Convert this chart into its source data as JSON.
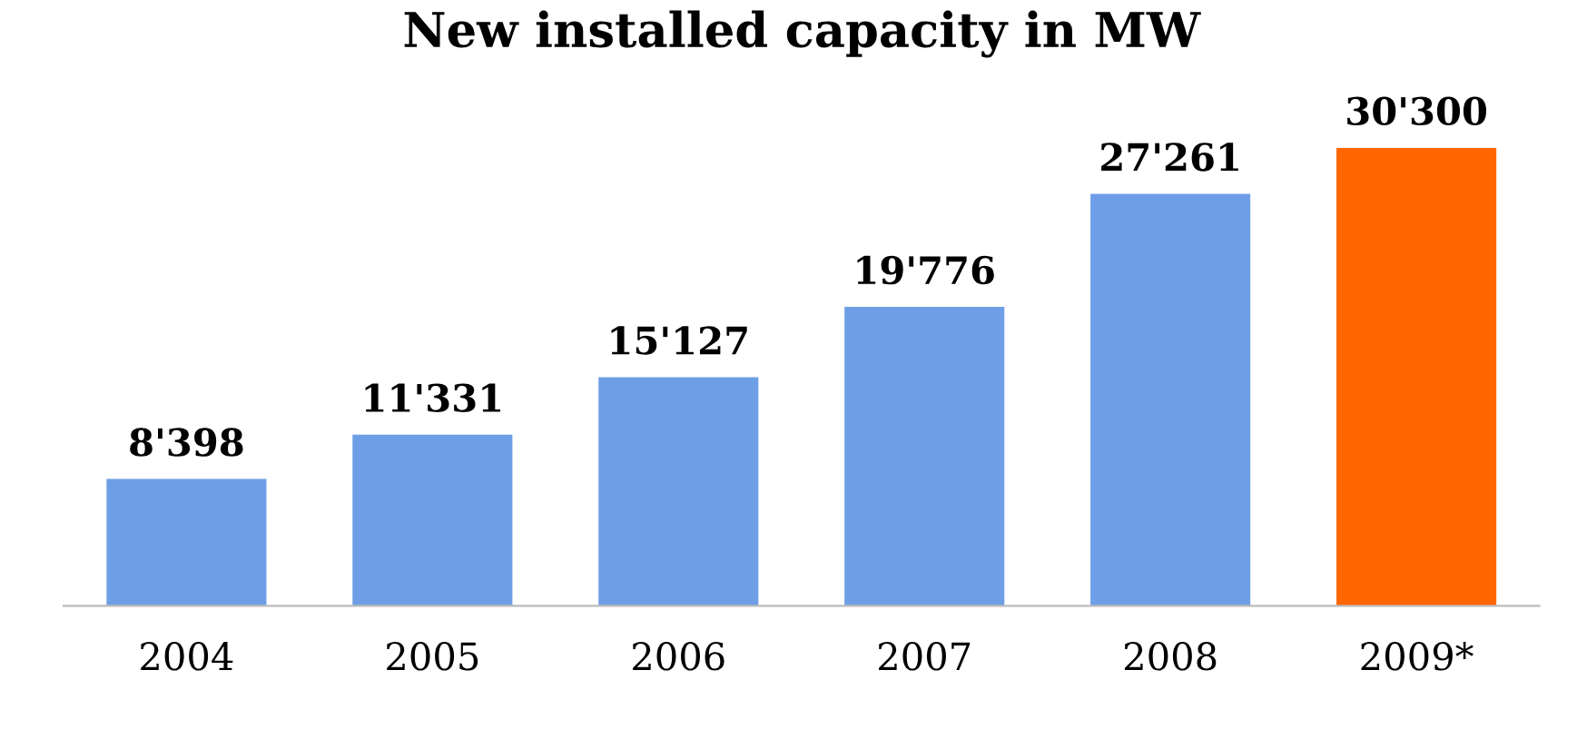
{
  "chart_data": {
    "type": "bar",
    "title": "New installed capacity in MW",
    "categories": [
      "2004",
      "2005",
      "2006",
      "2007",
      "2008",
      "2009*"
    ],
    "values": [
      8398,
      11331,
      15127,
      19776,
      27261,
      30300
    ],
    "colors": [
      "#6e9fe6",
      "#6e9fe6",
      "#6e9fe6",
      "#6e9fe6",
      "#6e9fe6",
      "#ff6600"
    ],
    "value_labels": [
      "8'398",
      "11'331",
      "15'127",
      "19'776",
      "27'261",
      "30'300"
    ],
    "grid": false,
    "legend": false
  }
}
